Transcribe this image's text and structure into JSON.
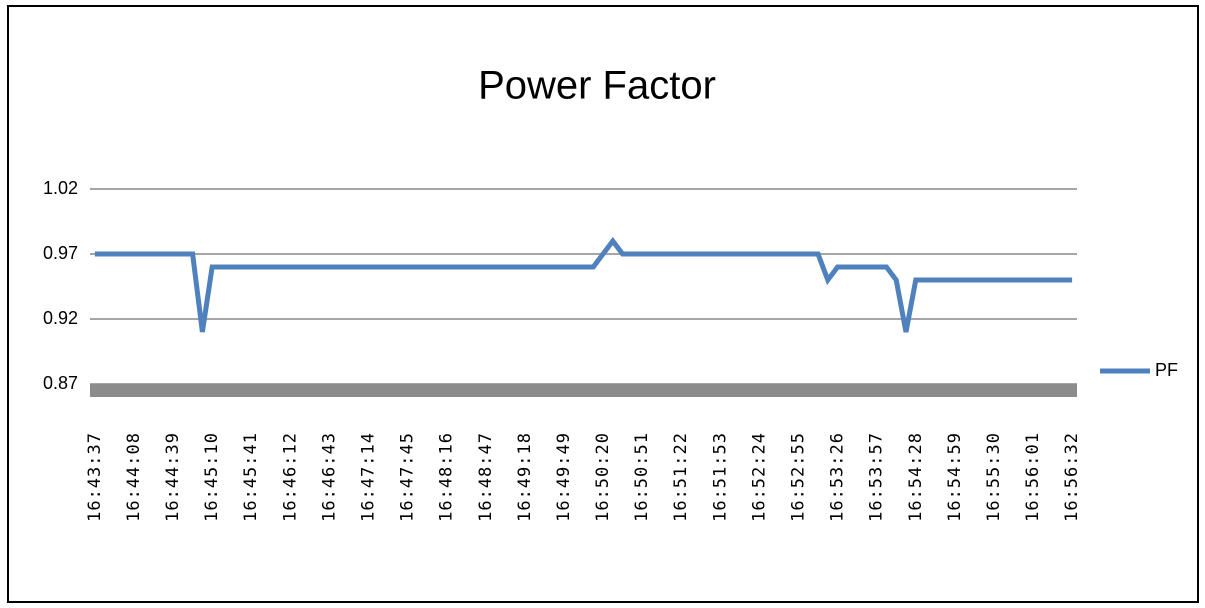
{
  "chart_data": {
    "type": "line",
    "title": "Power Factor",
    "categories": [
      "16:43:37",
      null,
      null,
      null,
      "16:44:08",
      null,
      null,
      null,
      "16:44:39",
      null,
      null,
      null,
      "16:45:10",
      null,
      null,
      null,
      "16:45:41",
      null,
      null,
      null,
      "16:46:12",
      null,
      null,
      null,
      "16:46:43",
      null,
      null,
      null,
      "16:47:14",
      null,
      null,
      null,
      "16:47:45",
      null,
      null,
      null,
      "16:48:16",
      null,
      null,
      null,
      "16:48:47",
      null,
      null,
      null,
      "16:49:18",
      null,
      null,
      null,
      "16:49:49",
      null,
      null,
      null,
      "16:50:20",
      null,
      null,
      null,
      "16:50:51",
      null,
      null,
      null,
      "16:51:22",
      null,
      null,
      null,
      "16:51:53",
      null,
      null,
      null,
      "16:52:24",
      null,
      null,
      null,
      "16:52:55",
      null,
      null,
      null,
      "16:53:26",
      null,
      null,
      null,
      "16:53:57",
      null,
      null,
      null,
      "16:54:28",
      null,
      null,
      null,
      "16:54:59",
      null,
      null,
      null,
      "16:55:30",
      null,
      null,
      null,
      "16:56:01",
      null,
      null,
      null,
      "16:56:32"
    ],
    "series": [
      {
        "name": "PF",
        "color": "#4f81bd",
        "values": [
          0.97,
          0.97,
          0.97,
          0.97,
          0.97,
          0.97,
          0.97,
          0.97,
          0.97,
          0.97,
          0.97,
          0.91,
          0.96,
          0.96,
          0.96,
          0.96,
          0.96,
          0.96,
          0.96,
          0.96,
          0.96,
          0.96,
          0.96,
          0.96,
          0.96,
          0.96,
          0.96,
          0.96,
          0.96,
          0.96,
          0.96,
          0.96,
          0.96,
          0.96,
          0.96,
          0.96,
          0.96,
          0.96,
          0.96,
          0.96,
          0.96,
          0.96,
          0.96,
          0.96,
          0.96,
          0.96,
          0.96,
          0.96,
          0.96,
          0.96,
          0.96,
          0.96,
          0.97,
          0.98,
          0.97,
          0.97,
          0.97,
          0.97,
          0.97,
          0.97,
          0.97,
          0.97,
          0.97,
          0.97,
          0.97,
          0.97,
          0.97,
          0.97,
          0.97,
          0.97,
          0.97,
          0.97,
          0.97,
          0.97,
          0.97,
          0.95,
          0.96,
          0.96,
          0.96,
          0.96,
          0.96,
          0.96,
          0.95,
          0.91,
          0.95,
          0.95,
          0.95,
          0.95,
          0.95,
          0.95,
          0.95,
          0.95,
          0.95,
          0.95,
          0.95,
          0.95,
          0.95,
          0.95,
          0.95,
          0.95,
          0.95
        ]
      }
    ],
    "ylim": [
      0.87,
      1.02
    ],
    "yticks": [
      0.87,
      0.92,
      0.97,
      1.02
    ],
    "grid": true,
    "legend": "right"
  }
}
